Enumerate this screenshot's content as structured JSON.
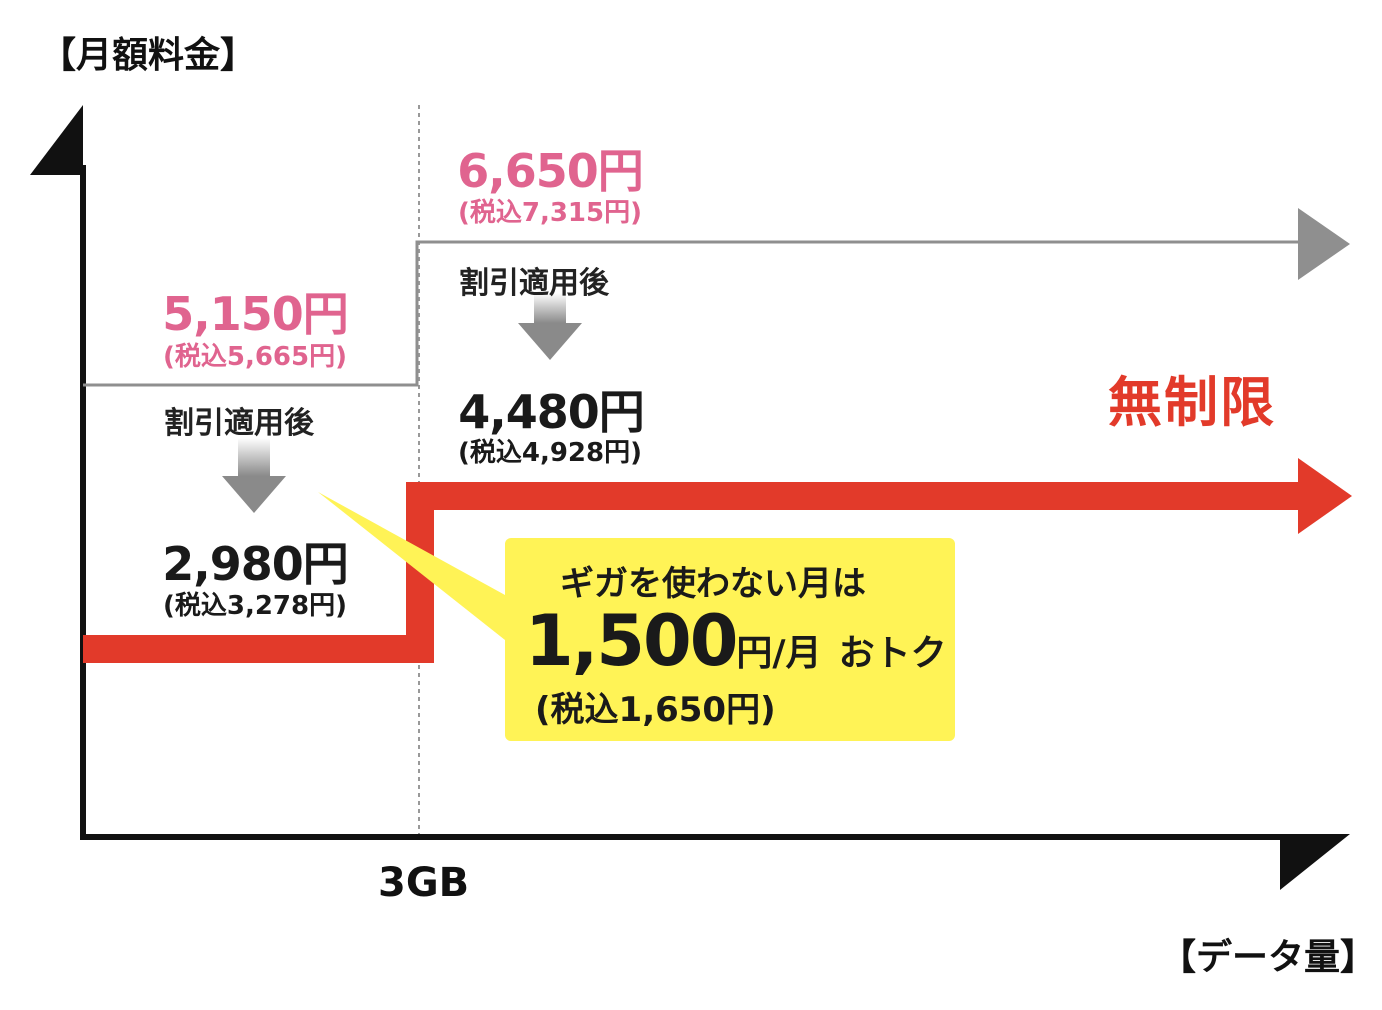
{
  "chart_data": {
    "type": "line",
    "title": "",
    "ylabel": "【月額料金】",
    "xlabel": "【データ量】",
    "x_ticks": [
      "3GB"
    ],
    "series": [
      {
        "role": "regular",
        "color": "#888888",
        "segments": [
          {
            "range": "0-3GB",
            "price": "5,150円",
            "tax_included": "(税込5,665円)"
          },
          {
            "range": "3GB-",
            "price": "6,650円",
            "tax_included": "(税込7,315円)"
          }
        ]
      },
      {
        "role": "discounted",
        "color": "#e23a2a",
        "segments": [
          {
            "range": "0-3GB",
            "price": "2,980円",
            "tax_included": "(税込3,278円)"
          },
          {
            "range": "3GB-",
            "price": "4,480円",
            "tax_included": "(税込4,928円)"
          }
        ]
      }
    ],
    "discount_note": "割引適用後",
    "unlimited_label": "無制限",
    "callout": {
      "line1": "ギガを使わない月は",
      "amount": "1,500",
      "unit": "円/月",
      "suffix": "おトク",
      "tax_included": "(税込1,650円)"
    }
  },
  "colors": {
    "axis": "#111111",
    "regular_line": "#888888",
    "discount_line": "#e23a2a",
    "pink_text": "#e0648f",
    "callout_bg": "#fff356"
  }
}
